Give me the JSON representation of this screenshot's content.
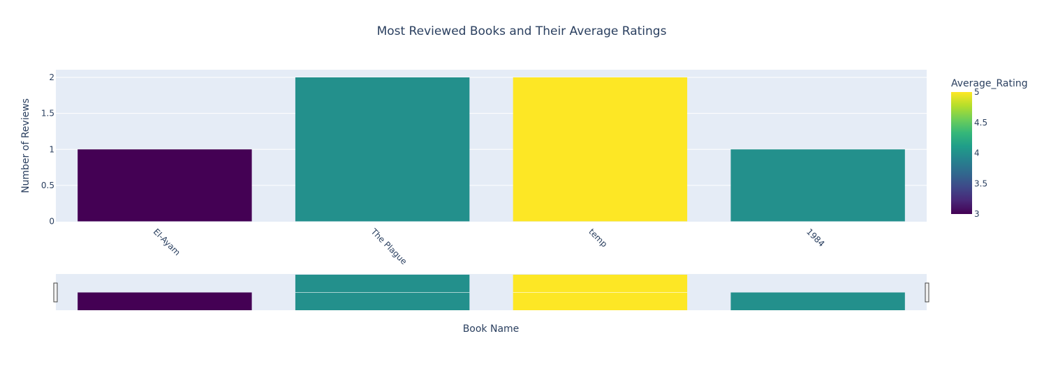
{
  "chart_data": {
    "type": "bar",
    "title": "Most Reviewed Books and Their Average Ratings",
    "xlabel": "Book Name",
    "ylabel": "Number of Reviews",
    "categories": [
      "El-Ayam",
      "The Plague",
      "temp",
      "1984"
    ],
    "values": [
      1,
      2,
      2,
      1
    ],
    "average_rating": [
      3,
      4,
      5,
      4
    ],
    "ylim": [
      0,
      2.05
    ],
    "yticks": [
      0,
      0.5,
      1,
      1.5,
      2
    ],
    "ytick_labels": [
      "0",
      "0.5",
      "1",
      "1.5",
      "2"
    ],
    "grid": true,
    "colorbar": {
      "title": "Average_Rating",
      "colorscale": "Viridis",
      "range": [
        3,
        5
      ],
      "ticks": [
        3,
        3.5,
        4,
        4.5,
        5
      ],
      "tick_labels": [
        "3",
        "3.5",
        "4",
        "4.5",
        "5"
      ]
    },
    "rangeslider": true,
    "legend": "colorbar-right"
  }
}
